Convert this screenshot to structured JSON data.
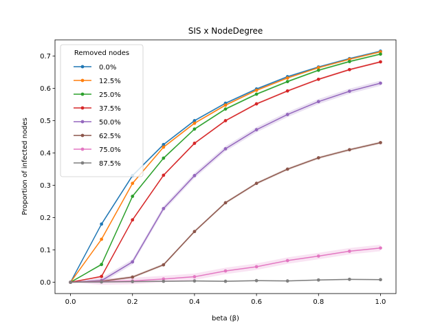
{
  "chart_data": {
    "type": "line",
    "title": "SIS x NodeDegree",
    "xlabel": "beta (β)",
    "ylabel": "Proportion of infected nodes",
    "xlim": [
      -0.05,
      1.05
    ],
    "ylim": [
      -0.035,
      0.75
    ],
    "x_ticks": [
      0.0,
      0.2,
      0.4,
      0.6,
      0.8,
      1.0
    ],
    "x_tick_labels": [
      "0.0",
      "0.2",
      "0.4",
      "0.6",
      "0.8",
      "1.0"
    ],
    "y_ticks": [
      0.0,
      0.1,
      0.2,
      0.3,
      0.4,
      0.5,
      0.6,
      0.7
    ],
    "y_tick_labels": [
      "0.0",
      "0.1",
      "0.2",
      "0.3",
      "0.4",
      "0.5",
      "0.6",
      "0.7"
    ],
    "grid": false,
    "legend": {
      "title": "Removed nodes",
      "position": "top-left"
    },
    "x": [
      0.0,
      0.1,
      0.2,
      0.3,
      0.4,
      0.5,
      0.6,
      0.7,
      0.8,
      0.9,
      1.0
    ],
    "series": [
      {
        "name": "0.0%",
        "color": "#1f77b4",
        "values": [
          0.0,
          0.18,
          0.33,
          0.426,
          0.5,
          0.554,
          0.598,
          0.636,
          0.666,
          0.692,
          0.715
        ],
        "band": 0.003
      },
      {
        "name": "12.5%",
        "color": "#ff7f0e",
        "values": [
          0.0,
          0.133,
          0.306,
          0.418,
          0.492,
          0.548,
          0.594,
          0.632,
          0.664,
          0.69,
          0.713
        ],
        "band": 0.003
      },
      {
        "name": "25.0%",
        "color": "#2ca02c",
        "values": [
          0.0,
          0.055,
          0.266,
          0.384,
          0.474,
          0.536,
          0.582,
          0.621,
          0.656,
          0.683,
          0.706
        ],
        "band": 0.003
      },
      {
        "name": "37.5%",
        "color": "#d62728",
        "values": [
          0.0,
          0.018,
          0.193,
          0.331,
          0.43,
          0.5,
          0.552,
          0.592,
          0.628,
          0.658,
          0.682
        ],
        "band": 0.003
      },
      {
        "name": "50.0%",
        "color": "#9467bd",
        "values": [
          0.0,
          0.005,
          0.063,
          0.228,
          0.33,
          0.413,
          0.472,
          0.519,
          0.559,
          0.591,
          0.616
        ],
        "band": 0.008
      },
      {
        "name": "62.5%",
        "color": "#8c564b",
        "values": [
          0.0,
          0.003,
          0.016,
          0.054,
          0.157,
          0.246,
          0.306,
          0.35,
          0.385,
          0.41,
          0.432
        ],
        "band": 0.004
      },
      {
        "name": "75.0%",
        "color": "#e377c2",
        "values": [
          0.0,
          0.002,
          0.004,
          0.01,
          0.017,
          0.035,
          0.048,
          0.067,
          0.081,
          0.096,
          0.106
        ],
        "band": 0.01
      },
      {
        "name": "87.5%",
        "color": "#7f7f7f",
        "values": [
          0.0,
          0.001,
          0.002,
          0.003,
          0.004,
          0.003,
          0.005,
          0.004,
          0.007,
          0.009,
          0.008
        ],
        "band": 0.002
      }
    ]
  }
}
